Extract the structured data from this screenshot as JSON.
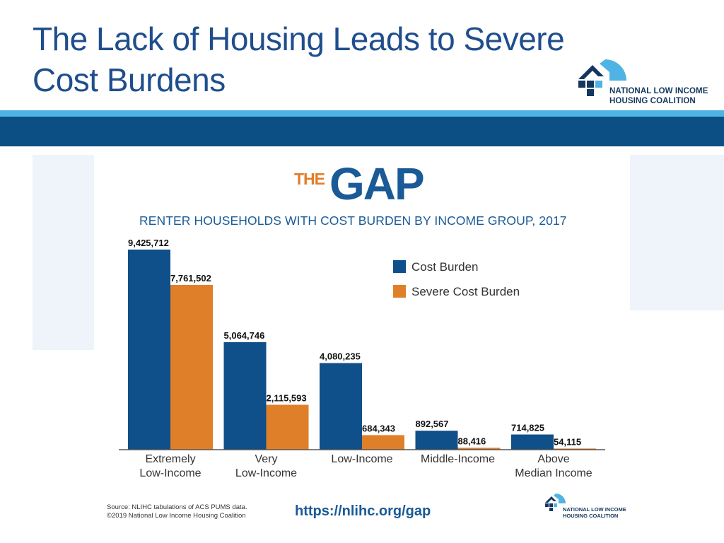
{
  "slide": {
    "title_line1": "The Lack of Housing Leads to Severe",
    "title_line2": "Cost Burdens",
    "org_line1": "NATIONAL LOW INCOME",
    "org_line2": "HOUSING COALITION"
  },
  "infographic": {
    "logo_the": "THE",
    "logo_gap": "GAP",
    "source_line1": "Source: NLIHC tabulations of  ACS PUMS data.",
    "source_line2": "©2019 National Low Income Housing Coalition",
    "url": "https://nlihc.org/gap",
    "footer_org_line1": "NATIONAL LOW INCOME",
    "footer_org_line2": "HOUSING COALITION"
  },
  "chart_data": {
    "type": "bar",
    "title": "RENTER HOUSEHOLDS WITH COST BURDEN BY INCOME GROUP, 2017",
    "categories": [
      [
        "Extremely",
        "Low-Income"
      ],
      [
        "Very",
        "Low-Income"
      ],
      [
        "Low-Income"
      ],
      [
        "Middle-Income"
      ],
      [
        "Above",
        "Median Income"
      ]
    ],
    "series": [
      {
        "name": "Cost Burden",
        "color": "#0f4f8a",
        "values": [
          9425712,
          5064746,
          4080235,
          892567,
          714825
        ],
        "labels": [
          "9,425,712",
          "5,064,746",
          "4,080,235",
          "892,567",
          "714,825"
        ]
      },
      {
        "name": "Severe Cost Burden",
        "color": "#e07f2a",
        "values": [
          7761502,
          2115593,
          684343,
          88416,
          54115
        ],
        "labels": [
          "7,761,502",
          "2,115,593",
          "684,343",
          "88,416",
          "54,115"
        ]
      }
    ],
    "ylim": [
      0,
      9425712
    ],
    "grid": false,
    "legend_position": "top-right"
  }
}
